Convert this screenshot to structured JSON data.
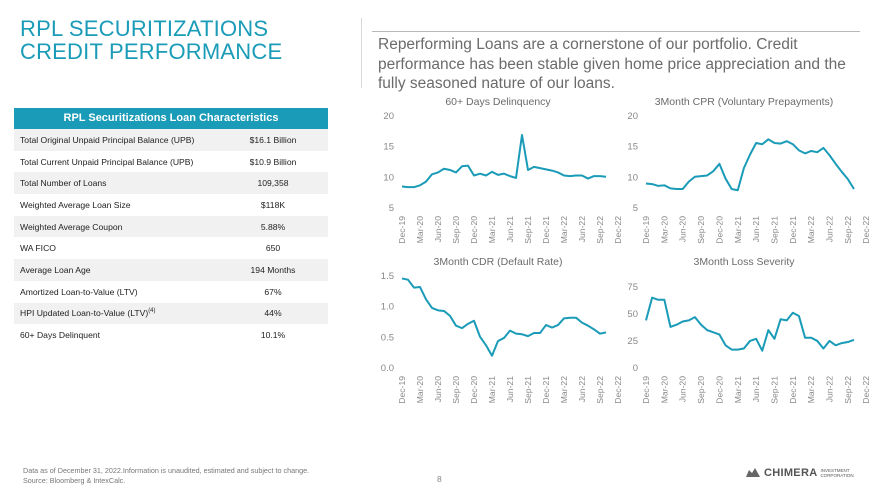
{
  "page": {
    "title": "RPL SECURITIZATIONS CREDIT PERFORMANCE",
    "subtitle": "Reperforming Loans are a cornerstone of our portfolio. Credit performance has been stable given home price appreciation and the fully seasoned nature of our loans.",
    "footnote_line1": "Data as of December 31, 2022.Information is unaudited, estimated and subject to change.",
    "footnote_line2": "Source: Bloomberg & IntexCalc.",
    "page_number": "8",
    "logo_text": "CHIMERA",
    "logo_sub1": "INVESTMENT",
    "logo_sub2": "CORPORATION",
    "accent_color": "#1a9bb7"
  },
  "table": {
    "header": "RPL Securitizations Loan Characteristics",
    "rows": [
      {
        "label": "Total Original Unpaid Principal Balance (UPB)",
        "value": "$16.1 Billion",
        "sup": ""
      },
      {
        "label": "Total Current Unpaid Principal Balance (UPB)",
        "value": "$10.9 Billion",
        "sup": ""
      },
      {
        "label": "Total Number of Loans",
        "value": "109,358",
        "sup": ""
      },
      {
        "label": "Weighted Average Loan Size",
        "value": "$118K",
        "sup": ""
      },
      {
        "label": "Weighted Average Coupon",
        "value": "5.88%",
        "sup": ""
      },
      {
        "label": "WA FICO",
        "value": "650",
        "sup": ""
      },
      {
        "label": "Average Loan Age",
        "value": "194 Months",
        "sup": ""
      },
      {
        "label": "Amortized Loan-to-Value (LTV)",
        "value": "67%",
        "sup": ""
      },
      {
        "label": "HPI Updated Loan-to-Value (LTV)",
        "value": "44%",
        "sup": "(4)"
      },
      {
        "label": "60+ Days Delinquent",
        "value": "10.1%",
        "sup": ""
      }
    ]
  },
  "chart_data": [
    {
      "type": "line",
      "title": "60+ Days Delinquency",
      "ylim": [
        5,
        20
      ],
      "yticks": [
        "20",
        "15",
        "10",
        "5"
      ],
      "ytick_values": [
        20,
        15,
        10,
        5
      ],
      "xtick_labels": [
        "Dec-19",
        "Mar-20",
        "Jun-20",
        "Sep-20",
        "Dec-20",
        "Mar-21",
        "Jun-21",
        "Sep-21",
        "Dec-21",
        "Mar-22",
        "Jun-22",
        "Sep-22",
        "Dec-22"
      ],
      "series": [
        {
          "values": [
            8.5,
            8.4,
            8.4,
            8.7,
            9.3,
            10.5,
            10.8,
            11.4,
            11.2,
            10.8,
            11.8,
            11.9,
            10.3,
            10.6,
            10.3,
            10.9,
            10.4,
            10.6,
            10.2,
            9.9,
            16.9,
            11.2,
            11.7,
            11.5,
            11.3,
            11.1,
            10.8,
            10.3,
            10.2,
            10.3,
            10.3,
            9.8,
            10.2,
            10.2,
            10.1
          ]
        }
      ]
    },
    {
      "type": "line",
      "title": "3Month CPR (Voluntary Prepayments)",
      "ylim": [
        5,
        20
      ],
      "yticks": [
        "20",
        "15",
        "10",
        "5"
      ],
      "ytick_values": [
        20,
        15,
        10,
        5
      ],
      "xtick_labels": [
        "Dec-19",
        "Mar-20",
        "Jun-20",
        "Sep-20",
        "Dec-20",
        "Mar-21",
        "Jun-21",
        "Sep-21",
        "Dec-21",
        "Mar-22",
        "Jun-22",
        "Sep-22",
        "Dec-22"
      ],
      "series": [
        {
          "values": [
            9.0,
            8.9,
            8.6,
            8.7,
            8.2,
            8.1,
            8.1,
            9.3,
            10.1,
            10.2,
            10.3,
            11.0,
            12.2,
            9.8,
            8.1,
            7.9,
            11.5,
            13.7,
            15.6,
            15.4,
            16.2,
            15.6,
            15.5,
            15.9,
            15.4,
            14.4,
            13.9,
            14.3,
            14.1,
            14.8,
            13.6,
            12.2,
            10.9,
            9.7,
            8.1
          ]
        }
      ]
    },
    {
      "type": "line",
      "title": "3Month CDR (Default Rate)",
      "ylim": [
        0,
        1.5
      ],
      "yticks": [
        "1.5",
        "1.0",
        "0.5",
        "0.0"
      ],
      "ytick_values": [
        1.5,
        1.0,
        0.5,
        0.0
      ],
      "xtick_labels": [
        "Dec-19",
        "Mar-20",
        "Jun-20",
        "Sep-20",
        "Dec-20",
        "Mar-21",
        "Jun-21",
        "Sep-21",
        "Dec-21",
        "Mar-22",
        "Jun-22",
        "Sep-22",
        "Dec-22"
      ],
      "series": [
        {
          "values": [
            1.46,
            1.44,
            1.31,
            1.32,
            1.12,
            0.98,
            0.94,
            0.93,
            0.85,
            0.69,
            0.65,
            0.72,
            0.77,
            0.51,
            0.37,
            0.2,
            0.44,
            0.49,
            0.61,
            0.56,
            0.55,
            0.52,
            0.57,
            0.57,
            0.7,
            0.66,
            0.7,
            0.81,
            0.82,
            0.82,
            0.74,
            0.69,
            0.63,
            0.56,
            0.58
          ]
        }
      ]
    },
    {
      "type": "line",
      "title": "3Month Loss Severity",
      "ylim": [
        0,
        85
      ],
      "yticks": [
        "75",
        "50",
        "25",
        "0"
      ],
      "ytick_values": [
        75,
        50,
        25,
        0
      ],
      "xtick_labels": [
        "Dec-19",
        "Mar-20",
        "Jun-20",
        "Sep-20",
        "Dec-20",
        "Mar-21",
        "Jun-21",
        "Sep-21",
        "Dec-21",
        "Mar-22",
        "Jun-22",
        "Sep-22",
        "Dec-22"
      ],
      "series": [
        {
          "values": [
            44,
            65,
            63,
            63,
            38,
            40,
            43,
            44,
            47,
            40,
            35,
            33,
            31,
            21,
            17,
            17,
            18,
            25,
            27,
            16,
            35,
            27,
            45,
            44,
            51,
            48,
            28,
            28,
            25,
            18,
            25,
            21,
            23,
            24,
            26
          ]
        }
      ]
    }
  ]
}
